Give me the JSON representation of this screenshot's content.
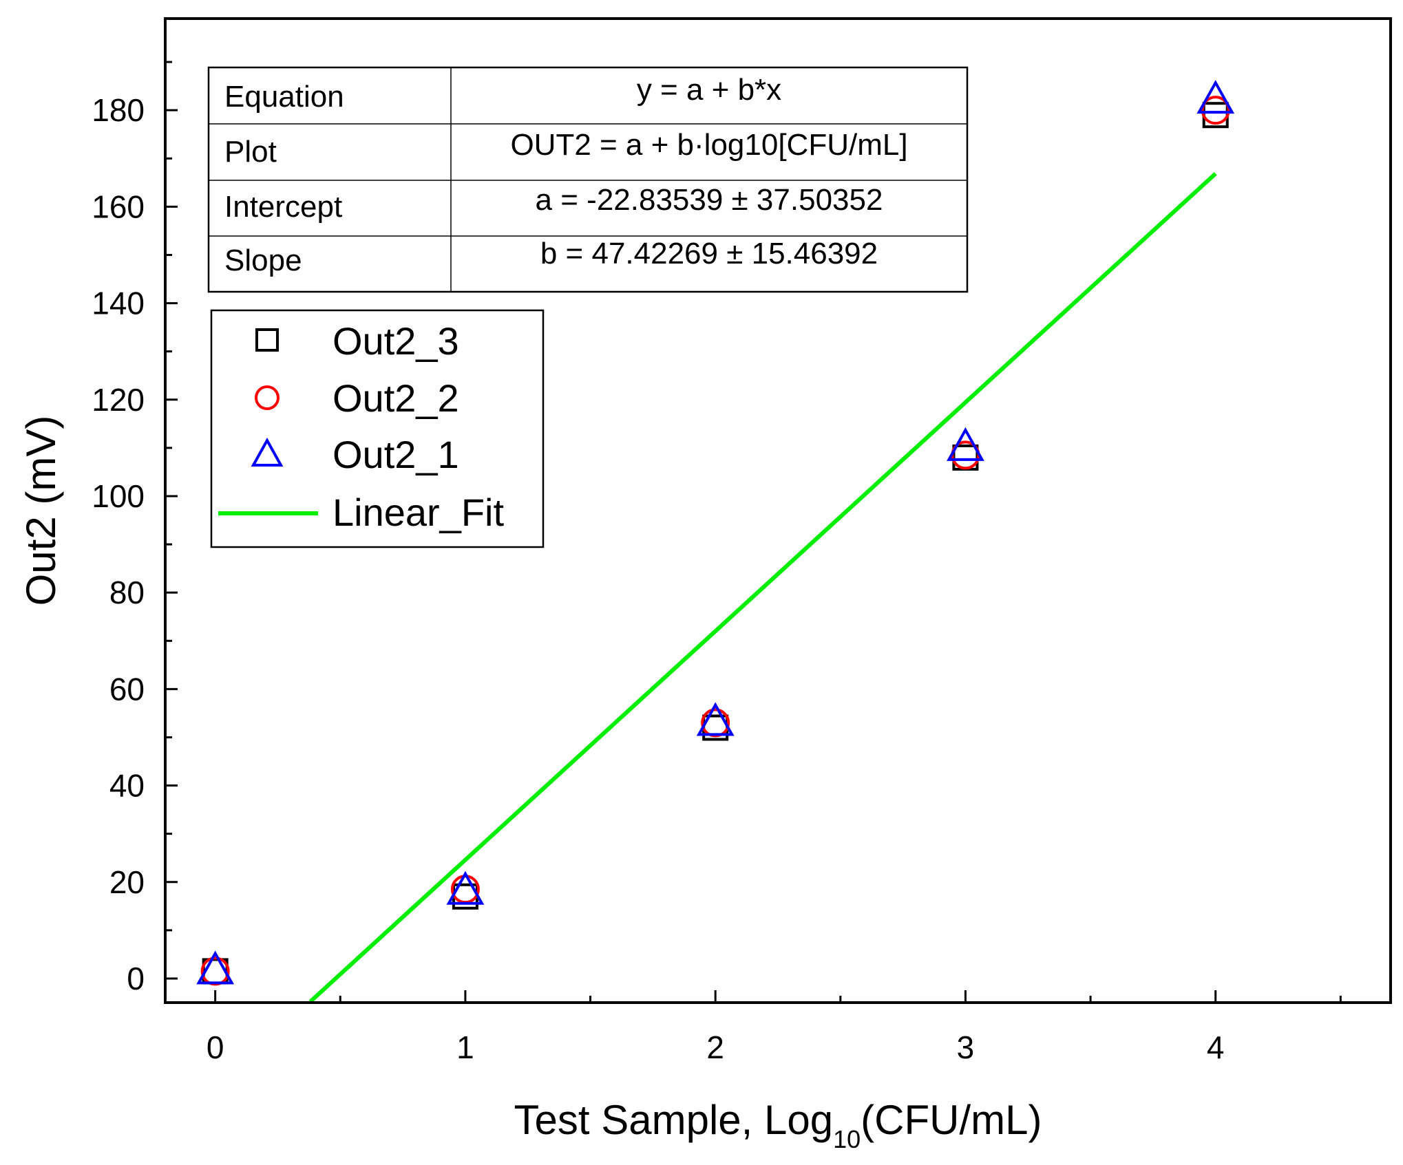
{
  "chart_data": {
    "type": "scatter",
    "xlabel_main": "Test Sample, Log",
    "xlabel_sub": "10",
    "xlabel_end": "(CFU/mL)",
    "ylabel": "Out2 (mV)",
    "xlim": [
      -0.2,
      4.7
    ],
    "ylim": [
      -5,
      199
    ],
    "x_ticks": [
      "0",
      "1",
      "2",
      "3",
      "4"
    ],
    "y_ticks": [
      "0",
      "20",
      "40",
      "60",
      "80",
      "100",
      "120",
      "140",
      "160",
      "180"
    ],
    "grid": false,
    "legend_position": "top-left",
    "series": [
      {
        "name": "Out2_3",
        "marker": "square",
        "color": "#000000",
        "x": [
          0,
          1,
          2,
          3,
          4
        ],
        "y": [
          1.5,
          17,
          52,
          108,
          179
        ]
      },
      {
        "name": "Out2_2",
        "marker": "circle",
        "color": "#ff0000",
        "x": [
          0,
          1,
          2,
          3,
          4
        ],
        "y": [
          1.5,
          18.5,
          53,
          108.5,
          180
        ]
      },
      {
        "name": "Out2_1",
        "marker": "triangle",
        "color": "#0000ff",
        "x": [
          0,
          1,
          2,
          3,
          4
        ],
        "y": [
          1.5,
          18,
          53,
          110,
          182
        ]
      }
    ],
    "fit": {
      "name": "Linear_Fit",
      "color": "#00ee00",
      "intercept": -22.83539,
      "slope": 47.42269,
      "x_range": [
        0.38,
        4.0
      ]
    },
    "stats_table": [
      {
        "label": "Equation",
        "value": "y = a + b*x"
      },
      {
        "label": "Plot",
        "value": "OUT2 = a + b·log10[CFU/mL]"
      },
      {
        "label": "Intercept",
        "value": "a = -22.83539 ± 37.50352"
      },
      {
        "label": "Slope",
        "value": "b = 47.42269 ± 15.46392"
      }
    ]
  }
}
